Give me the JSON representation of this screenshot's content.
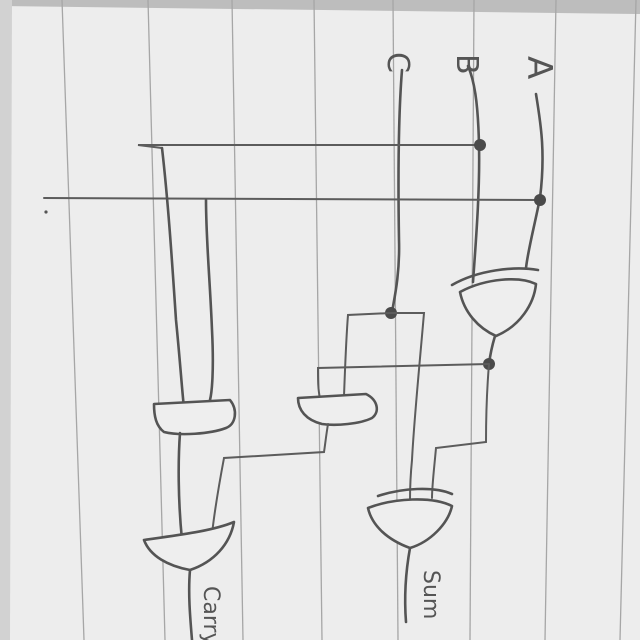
{
  "inputs": {
    "a": "A",
    "b": "B",
    "c": "C"
  },
  "outputs": {
    "sum": "Sum",
    "carry": "Carry"
  },
  "colors": {
    "paper": "#eeeeee",
    "ink": "#545454",
    "rule": "#a6a6a6",
    "background": "#8d8d8d"
  }
}
